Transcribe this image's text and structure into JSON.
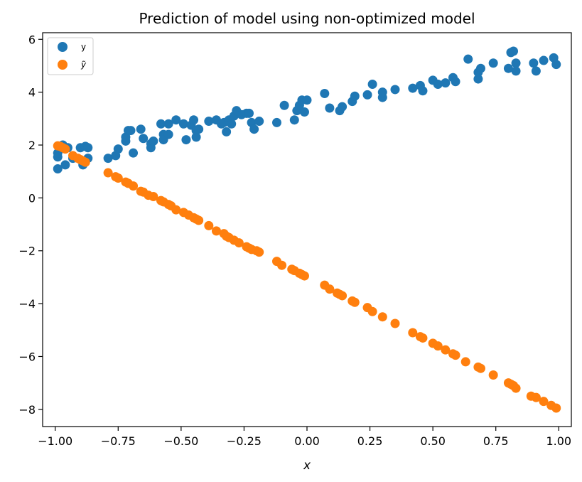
{
  "chart_data": {
    "type": "scatter",
    "title": "Prediction of model using non-optimized model",
    "xlabel": "x",
    "ylabel": "",
    "xlim": [
      -1.05,
      1.05
    ],
    "ylim": [
      -8.65,
      6.25
    ],
    "xticks": [
      -1.0,
      -0.75,
      -0.5,
      -0.25,
      0.0,
      0.25,
      0.5,
      0.75,
      1.0
    ],
    "xtick_labels": [
      "−1.00",
      "−0.75",
      "−0.50",
      "−0.25",
      "0.00",
      "0.25",
      "0.50",
      "0.75",
      "1.00"
    ],
    "yticks": [
      -8,
      -6,
      -4,
      -2,
      0,
      2,
      4,
      6
    ],
    "ytick_labels": [
      "−8",
      "−6",
      "−4",
      "−2",
      "0",
      "2",
      "4",
      "6"
    ],
    "grid": false,
    "legend_position": "top-left",
    "series": [
      {
        "name": "y",
        "color": "#1f77b4",
        "points": [
          [
            -0.99,
            1.1
          ],
          [
            -0.99,
            1.55
          ],
          [
            -0.99,
            1.7
          ],
          [
            -0.98,
            1.95
          ],
          [
            -0.97,
            2.0
          ],
          [
            -0.96,
            1.25
          ],
          [
            -0.95,
            1.9
          ],
          [
            -0.93,
            1.5
          ],
          [
            -0.9,
            1.9
          ],
          [
            -0.89,
            1.25
          ],
          [
            -0.88,
            1.4
          ],
          [
            -0.88,
            1.95
          ],
          [
            -0.87,
            1.9
          ],
          [
            -0.87,
            1.5
          ],
          [
            -0.79,
            1.5
          ],
          [
            -0.76,
            1.6
          ],
          [
            -0.75,
            1.85
          ],
          [
            -0.72,
            2.15
          ],
          [
            -0.72,
            2.3
          ],
          [
            -0.71,
            2.55
          ],
          [
            -0.7,
            2.55
          ],
          [
            -0.69,
            1.7
          ],
          [
            -0.66,
            2.6
          ],
          [
            -0.65,
            2.25
          ],
          [
            -0.62,
            2.05
          ],
          [
            -0.62,
            1.9
          ],
          [
            -0.61,
            2.15
          ],
          [
            -0.58,
            2.8
          ],
          [
            -0.57,
            2.4
          ],
          [
            -0.57,
            2.2
          ],
          [
            -0.55,
            2.8
          ],
          [
            -0.55,
            2.4
          ],
          [
            -0.52,
            2.95
          ],
          [
            -0.49,
            2.8
          ],
          [
            -0.48,
            2.2
          ],
          [
            -0.46,
            2.75
          ],
          [
            -0.45,
            2.95
          ],
          [
            -0.44,
            2.3
          ],
          [
            -0.44,
            2.55
          ],
          [
            -0.43,
            2.6
          ],
          [
            -0.39,
            2.9
          ],
          [
            -0.36,
            2.95
          ],
          [
            -0.34,
            2.8
          ],
          [
            -0.33,
            2.85
          ],
          [
            -0.32,
            2.5
          ],
          [
            -0.31,
            2.95
          ],
          [
            -0.3,
            2.8
          ],
          [
            -0.29,
            3.1
          ],
          [
            -0.28,
            3.3
          ],
          [
            -0.26,
            3.15
          ],
          [
            -0.24,
            3.2
          ],
          [
            -0.23,
            3.2
          ],
          [
            -0.22,
            2.85
          ],
          [
            -0.21,
            2.6
          ],
          [
            -0.19,
            2.9
          ],
          [
            -0.12,
            2.85
          ],
          [
            -0.09,
            3.5
          ],
          [
            -0.05,
            2.95
          ],
          [
            -0.04,
            3.3
          ],
          [
            -0.03,
            3.5
          ],
          [
            -0.02,
            3.7
          ],
          [
            -0.01,
            3.25
          ],
          [
            0.0,
            3.7
          ],
          [
            0.07,
            3.95
          ],
          [
            0.09,
            3.4
          ],
          [
            0.13,
            3.3
          ],
          [
            0.14,
            3.45
          ],
          [
            0.18,
            3.65
          ],
          [
            0.19,
            3.85
          ],
          [
            0.24,
            3.9
          ],
          [
            0.26,
            4.3
          ],
          [
            0.3,
            3.8
          ],
          [
            0.3,
            4.0
          ],
          [
            0.35,
            4.1
          ],
          [
            0.42,
            4.15
          ],
          [
            0.45,
            4.25
          ],
          [
            0.46,
            4.05
          ],
          [
            0.5,
            4.45
          ],
          [
            0.52,
            4.3
          ],
          [
            0.55,
            4.35
          ],
          [
            0.58,
            4.55
          ],
          [
            0.59,
            4.4
          ],
          [
            0.64,
            5.25
          ],
          [
            0.68,
            4.5
          ],
          [
            0.68,
            4.75
          ],
          [
            0.69,
            4.9
          ],
          [
            0.74,
            5.1
          ],
          [
            0.8,
            4.9
          ],
          [
            0.81,
            5.5
          ],
          [
            0.82,
            5.55
          ],
          [
            0.83,
            5.1
          ],
          [
            0.83,
            4.8
          ],
          [
            0.9,
            5.1
          ],
          [
            0.91,
            4.8
          ],
          [
            0.94,
            5.2
          ],
          [
            0.98,
            5.3
          ],
          [
            0.99,
            5.05
          ]
        ]
      },
      {
        "name": "ỹ",
        "color": "#ff7f0e",
        "points": [
          [
            -0.99,
            1.97
          ],
          [
            -0.98,
            1.95
          ],
          [
            -0.97,
            1.9
          ],
          [
            -0.96,
            1.85
          ],
          [
            -0.93,
            1.6
          ],
          [
            -0.91,
            1.5
          ],
          [
            -0.9,
            1.45
          ],
          [
            -0.89,
            1.4
          ],
          [
            -0.88,
            1.35
          ],
          [
            -0.79,
            0.95
          ],
          [
            -0.76,
            0.8
          ],
          [
            -0.75,
            0.75
          ],
          [
            -0.72,
            0.6
          ],
          [
            -0.71,
            0.55
          ],
          [
            -0.69,
            0.45
          ],
          [
            -0.66,
            0.25
          ],
          [
            -0.65,
            0.22
          ],
          [
            -0.63,
            0.1
          ],
          [
            -0.61,
            0.05
          ],
          [
            -0.58,
            -0.1
          ],
          [
            -0.57,
            -0.15
          ],
          [
            -0.55,
            -0.25
          ],
          [
            -0.54,
            -0.3
          ],
          [
            -0.52,
            -0.45
          ],
          [
            -0.49,
            -0.55
          ],
          [
            -0.47,
            -0.65
          ],
          [
            -0.45,
            -0.75
          ],
          [
            -0.44,
            -0.8
          ],
          [
            -0.43,
            -0.85
          ],
          [
            -0.39,
            -1.05
          ],
          [
            -0.36,
            -1.25
          ],
          [
            -0.33,
            -1.35
          ],
          [
            -0.32,
            -1.45
          ],
          [
            -0.31,
            -1.5
          ],
          [
            -0.29,
            -1.6
          ],
          [
            -0.27,
            -1.7
          ],
          [
            -0.24,
            -1.85
          ],
          [
            -0.23,
            -1.9
          ],
          [
            -0.22,
            -1.95
          ],
          [
            -0.2,
            -2.0
          ],
          [
            -0.19,
            -2.05
          ],
          [
            -0.12,
            -2.4
          ],
          [
            -0.1,
            -2.55
          ],
          [
            -0.06,
            -2.7
          ],
          [
            -0.05,
            -2.75
          ],
          [
            -0.03,
            -2.85
          ],
          [
            -0.02,
            -2.9
          ],
          [
            -0.01,
            -2.95
          ],
          [
            0.07,
            -3.3
          ],
          [
            0.09,
            -3.45
          ],
          [
            0.12,
            -3.6
          ],
          [
            0.13,
            -3.65
          ],
          [
            0.14,
            -3.7
          ],
          [
            0.18,
            -3.9
          ],
          [
            0.19,
            -3.95
          ],
          [
            0.24,
            -4.15
          ],
          [
            0.26,
            -4.3
          ],
          [
            0.3,
            -4.5
          ],
          [
            0.35,
            -4.75
          ],
          [
            0.42,
            -5.1
          ],
          [
            0.45,
            -5.25
          ],
          [
            0.46,
            -5.3
          ],
          [
            0.5,
            -5.5
          ],
          [
            0.52,
            -5.6
          ],
          [
            0.55,
            -5.75
          ],
          [
            0.58,
            -5.9
          ],
          [
            0.59,
            -5.95
          ],
          [
            0.63,
            -6.2
          ],
          [
            0.68,
            -6.4
          ],
          [
            0.69,
            -6.45
          ],
          [
            0.74,
            -6.7
          ],
          [
            0.8,
            -7.0
          ],
          [
            0.81,
            -7.05
          ],
          [
            0.82,
            -7.1
          ],
          [
            0.83,
            -7.2
          ],
          [
            0.89,
            -7.5
          ],
          [
            0.91,
            -7.55
          ],
          [
            0.94,
            -7.7
          ],
          [
            0.97,
            -7.85
          ],
          [
            0.99,
            -7.95
          ]
        ]
      }
    ]
  }
}
